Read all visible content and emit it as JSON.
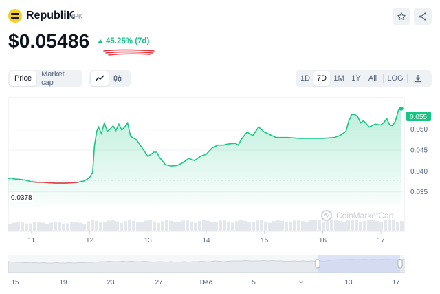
{
  "header": {
    "name": "RepubliK",
    "symbol": "RPK",
    "price": "$0.05486",
    "change": "45.25% (7d)"
  },
  "colors": {
    "accent_green": "#16c784",
    "negative_red": "#ea3943",
    "panel_gray": "#eff2f5",
    "text_gray": "#58667e"
  },
  "toolbar": {
    "price_tab": "Price",
    "marketcap_tab": "Market cap",
    "line_icon": "line-chart-icon",
    "candle_icon": "candlestick-icon",
    "ranges": [
      "1D",
      "7D",
      "1M",
      "1Y",
      "All"
    ],
    "active_range": "7D",
    "log_label": "LOG",
    "download_icon": "download-icon",
    "star_icon": "star-icon",
    "share_icon": "share-icon"
  },
  "chart_data": {
    "type": "area",
    "x_ticks": [
      "11",
      "12",
      "13",
      "14",
      "15",
      "16",
      "17"
    ],
    "y_ticks": [
      "0.050",
      "0.045",
      "0.040",
      "0.035"
    ],
    "ylim": [
      0.0315,
      0.0575
    ],
    "current_price_label": "0.055",
    "open_price_label": "0.0378",
    "open_price": 0.0378,
    "watermark": "CoinMarketCap",
    "series": [
      {
        "x": [
          10.6,
          10.65,
          10.7,
          10.8,
          10.9,
          11.0,
          11.1,
          11.2,
          11.3,
          11.4,
          11.5,
          11.6,
          11.7,
          11.8,
          11.9,
          11.95,
          12.0,
          12.05,
          12.08,
          12.12,
          12.15,
          12.2,
          12.25,
          12.3,
          12.35,
          12.4,
          12.45,
          12.5,
          12.55,
          12.6,
          12.65,
          12.7,
          12.8,
          12.9,
          13.0,
          13.1,
          13.15,
          13.2,
          13.3,
          13.4,
          13.5,
          13.6,
          13.7,
          13.8,
          13.9,
          14.0,
          14.1,
          14.2,
          14.3,
          14.35,
          14.4,
          14.5,
          14.55,
          14.6,
          14.7,
          14.8,
          14.9,
          15.0,
          15.2,
          15.4,
          15.6,
          15.8,
          16.0,
          16.2,
          16.3,
          16.4,
          16.45,
          16.5,
          16.55,
          16.6,
          16.65,
          16.7,
          16.8,
          16.9,
          17.0,
          17.05,
          17.1,
          17.15,
          17.2,
          17.25,
          17.3,
          17.35
        ],
        "values": [
          0.0382,
          0.0383,
          0.0381,
          0.038,
          0.0378,
          0.0374,
          0.0373,
          0.0373,
          0.0372,
          0.0371,
          0.0371,
          0.0371,
          0.0372,
          0.0373,
          0.0376,
          0.038,
          0.0385,
          0.0397,
          0.046,
          0.0495,
          0.0505,
          0.049,
          0.0515,
          0.0495,
          0.05,
          0.0508,
          0.0497,
          0.0512,
          0.0498,
          0.0505,
          0.0515,
          0.0483,
          0.0475,
          0.0455,
          0.0435,
          0.0445,
          0.0445,
          0.0432,
          0.0415,
          0.0412,
          0.0413,
          0.042,
          0.043,
          0.0425,
          0.0435,
          0.044,
          0.0455,
          0.0462,
          0.0462,
          0.0464,
          0.0465,
          0.0466,
          0.0462,
          0.0475,
          0.0493,
          0.0485,
          0.0505,
          0.0493,
          0.048,
          0.048,
          0.0478,
          0.0478,
          0.0478,
          0.048,
          0.0485,
          0.0495,
          0.052,
          0.0535,
          0.0535,
          0.053,
          0.0515,
          0.052,
          0.0505,
          0.0512,
          0.051,
          0.0516,
          0.0525,
          0.051,
          0.0508,
          0.052,
          0.0545,
          0.0549
        ]
      }
    ],
    "navigator": {
      "x_ticks": [
        "15",
        "19",
        "23",
        "27",
        "Dec",
        "5",
        "9",
        "13",
        "17"
      ]
    }
  }
}
